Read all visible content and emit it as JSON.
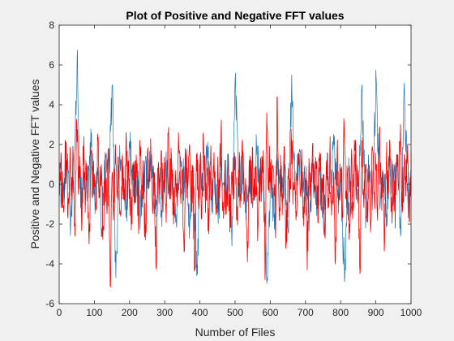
{
  "chart_data": {
    "type": "line",
    "title": "Plot of Positive and Negative FFT values",
    "xlabel": "Number of Files",
    "ylabel": "Positive and Negative FFT values",
    "xlim": [
      0,
      1000
    ],
    "ylim": [
      -6,
      8
    ],
    "x_ticks": [
      0,
      100,
      200,
      300,
      400,
      500,
      600,
      700,
      800,
      900,
      1000
    ],
    "y_ticks": [
      -6,
      -4,
      -2,
      0,
      2,
      4,
      6,
      8
    ],
    "grid": false,
    "legend": "none",
    "series": [
      {
        "color": "#1f77b4",
        "x_start": 1,
        "x_step": 10,
        "values": [
          0.6,
          -0.9,
          1.2,
          -1.6,
          0.3,
          6.4,
          -1.2,
          0.8,
          -0.4,
          1.9,
          -0.7,
          0.2,
          -2.2,
          1.4,
          -0.3,
          5.0,
          -4.7,
          0.9,
          0.4,
          -1.1,
          1.8,
          -0.6,
          0.5,
          -1.7,
          0.8,
          -0.2,
          1.5,
          -0.9,
          0.3,
          -1.3,
          1.1,
          -0.5,
          0.7,
          -1.9,
          0.4,
          -0.1,
          1.3,
          -2.1,
          0.6,
          -4.6,
          0.9,
          -0.3,
          1.6,
          -0.8,
          0.2,
          -1.4,
          0.7,
          -0.2,
          1.2,
          -3.1,
          5.6,
          -0.6,
          0.9,
          -1.8,
          0.4,
          -0.7,
          1.9,
          -0.4,
          0.8,
          -4.7,
          0.3,
          -1.5,
          1.1,
          -0.3,
          0.6,
          -2.4,
          5.5,
          -0.8,
          1.4,
          -0.5,
          0.2,
          -1.6,
          1.0,
          -0.9,
          0.5,
          -2.0,
          0.7,
          -0.4,
          2.0,
          -0.7,
          0.3,
          -4.9,
          0.8,
          -1.2,
          1.5,
          -0.6,
          5.0,
          -2.2,
          0.9,
          -0.3,
          5.3,
          -1.0,
          0.6,
          -1.5,
          1.2,
          -0.4,
          0.7,
          -2.6,
          5.1,
          -0.8,
          0.5
        ],
        "extremes": {
          "max": 6.4,
          "min": -4.9
        }
      },
      {
        "color": "#ff0000",
        "x_start": 0,
        "x_step": 5,
        "values": [
          -0.4,
          1.6,
          -0.9,
          0.3,
          2.1,
          -1.7,
          0.8,
          -0.2,
          1.3,
          -2.6,
          3.1,
          -0.5,
          0.9,
          -1.8,
          2.4,
          -0.7,
          0.2,
          -3.0,
          1.7,
          -0.6,
          0.5,
          -1.3,
          2.2,
          -0.4,
          1.0,
          -2.1,
          0.6,
          -0.9,
          1.8,
          -5.1,
          0.4,
          -1.2,
          2.0,
          -0.3,
          0.7,
          -1.6,
          1.4,
          -0.8,
          2.6,
          -0.5,
          0.3,
          -2.3,
          1.1,
          -0.4,
          0.9,
          -1.9,
          1.6,
          -0.7,
          0.5,
          -2.8,
          1.2,
          -0.2,
          2.3,
          -1.0,
          0.6,
          -4.1,
          0.8,
          -0.5,
          1.7,
          -1.4,
          0.4,
          -0.9,
          2.5,
          -0.3,
          1.0,
          -2.0,
          0.7,
          -1.1,
          1.9,
          -0.6,
          0.3,
          -3.4,
          1.3,
          -0.2,
          2.0,
          -0.8,
          0.6,
          -4.3,
          1.5,
          -0.5,
          0.9,
          -1.7,
          2.2,
          -0.4,
          0.8,
          -2.5,
          1.1,
          -0.3,
          1.6,
          -1.2,
          0.5,
          -0.7,
          2.7,
          -0.9,
          0.4,
          -1.5,
          1.0,
          -2.4,
          0.6,
          -0.2,
          1.4,
          -1.8,
          0.7,
          -0.5,
          2.1,
          -1.0,
          0.3,
          -3.9,
          1.2,
          -0.6,
          1.8,
          -0.8,
          0.9,
          -2.2,
          0.5,
          -0.4,
          1.7,
          -4.8,
          3.6,
          -0.3,
          1.1,
          -0.7,
          0.6,
          -2.7,
          4.4,
          -1.3,
          0.8,
          -0.5,
          1.9,
          -3.0,
          0.4,
          -0.9,
          2.3,
          -0.2,
          0.7,
          -1.6,
          1.5,
          -0.6,
          1.0,
          -2.1,
          0.3,
          -4.3,
          1.3,
          -0.8,
          2.0,
          -0.4,
          0.9,
          -1.9,
          1.6,
          -0.3,
          0.5,
          -2.6,
          1.2,
          -0.7,
          2.4,
          -1.1,
          0.6,
          -4.0,
          1.8,
          -0.5,
          0.8,
          -1.4,
          2.9,
          -0.6,
          0.4,
          -2.0,
          1.1,
          -0.9,
          1.7,
          -0.2,
          0.7,
          -4.5,
          2.2,
          -0.6,
          1.0,
          -1.3,
          0.5,
          -2.4,
          1.9,
          -0.4,
          0.9,
          -1.8,
          2.8,
          -0.7,
          0.3,
          -2.9,
          1.4,
          -0.5,
          1.2,
          -1.0,
          0.6,
          -2.2,
          1.5,
          -0.3,
          3.0,
          -1.4,
          0.8,
          -0.6,
          2.0,
          -1.9,
          0.4
        ]
      }
    ]
  }
}
